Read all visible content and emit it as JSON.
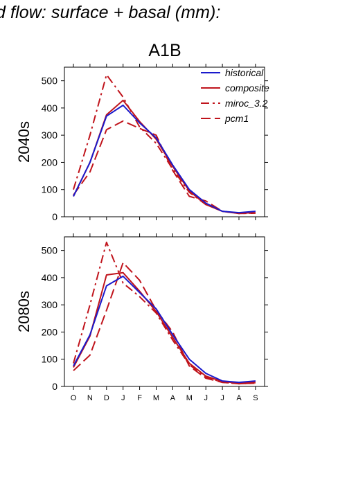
{
  "header": {
    "title": "d flow: surface + basal (mm):"
  },
  "chart_data": {
    "type": "line",
    "scenario": "A1B",
    "categories": [
      "O",
      "N",
      "D",
      "J",
      "F",
      "M",
      "A",
      "M",
      "J",
      "J",
      "A",
      "S"
    ],
    "ylim": [
      0,
      550
    ],
    "yticks": [
      0,
      100,
      200,
      300,
      400,
      500
    ],
    "legend": [
      "historical",
      "composite",
      "miroc_3.2",
      "pcm1"
    ],
    "panels": [
      {
        "label": "2040s",
        "series": [
          {
            "name": "historical",
            "color": "#1a1acc",
            "dash": "solid",
            "values": [
              75,
              200,
              370,
              410,
              345,
              290,
              190,
              100,
              50,
              20,
              15,
              20
            ]
          },
          {
            "name": "composite",
            "color": "#c0141c",
            "dash": "solid",
            "values": [
              75,
              200,
              375,
              428,
              350,
              285,
              185,
              95,
              45,
              20,
              13,
              15
            ]
          },
          {
            "name": "miroc_3.2",
            "color": "#c0141c",
            "dash": "dashdot",
            "values": [
              100,
              300,
              522,
              440,
              330,
              270,
              175,
              90,
              45,
              20,
              12,
              14
            ]
          },
          {
            "name": "pcm1",
            "color": "#c0141c",
            "dash": "dash",
            "values": [
              80,
              165,
              320,
              352,
              325,
              300,
              170,
              75,
              58,
              20,
              12,
              13
            ]
          }
        ]
      },
      {
        "label": "2080s",
        "series": [
          {
            "name": "historical",
            "color": "#1a1acc",
            "dash": "solid",
            "values": [
              75,
              190,
              370,
              405,
              345,
              285,
              190,
              100,
              48,
              20,
              15,
              20
            ]
          },
          {
            "name": "composite",
            "color": "#c0141c",
            "dash": "solid",
            "values": [
              70,
              185,
              410,
              418,
              350,
              275,
              180,
              85,
              38,
              18,
              12,
              16
            ]
          },
          {
            "name": "miroc_3.2",
            "color": "#c0141c",
            "dash": "dashdot",
            "values": [
              85,
              300,
              530,
              380,
              330,
              270,
              170,
              80,
              35,
              15,
              10,
              12
            ]
          },
          {
            "name": "pcm1",
            "color": "#c0141c",
            "dash": "dash",
            "values": [
              58,
              115,
              280,
              455,
              390,
              280,
              200,
              75,
              30,
              15,
              10,
              12
            ]
          }
        ]
      }
    ]
  }
}
